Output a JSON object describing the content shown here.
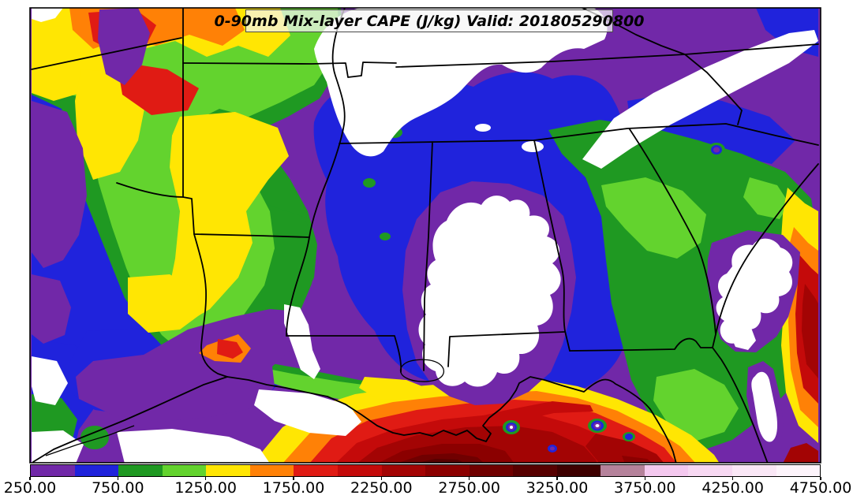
{
  "title": {
    "text": "0-90mb Mix-layer CAPE (J/kg) Valid: 201805290800"
  },
  "colorbar": {
    "units": "J/kg",
    "min": 250,
    "max": 4750,
    "interval": 250,
    "tick_labels": [
      "250.00",
      "750.00",
      "1250.00",
      "1750.00",
      "2250.00",
      "2750.00",
      "3250.00",
      "3750.00",
      "4250.00",
      "4750.00"
    ],
    "colors": [
      "#7128A8",
      "#2023DC",
      "#1F9922",
      "#63D32E",
      "#FFE603",
      "#FF8106",
      "#E01B14",
      "#C40A0A",
      "#A30404",
      "#8B0000",
      "#700000",
      "#570000",
      "#3E0000",
      "#B5829B",
      "#F4C8EF",
      "#F7D8F2",
      "#FAE7F6",
      "#FDF4FB"
    ]
  },
  "map": {
    "field": "0-90mb Mix-layer CAPE",
    "valid_time": "201805290800",
    "below_min_color": "#FFFFFF",
    "boundary_color": "#000000"
  }
}
